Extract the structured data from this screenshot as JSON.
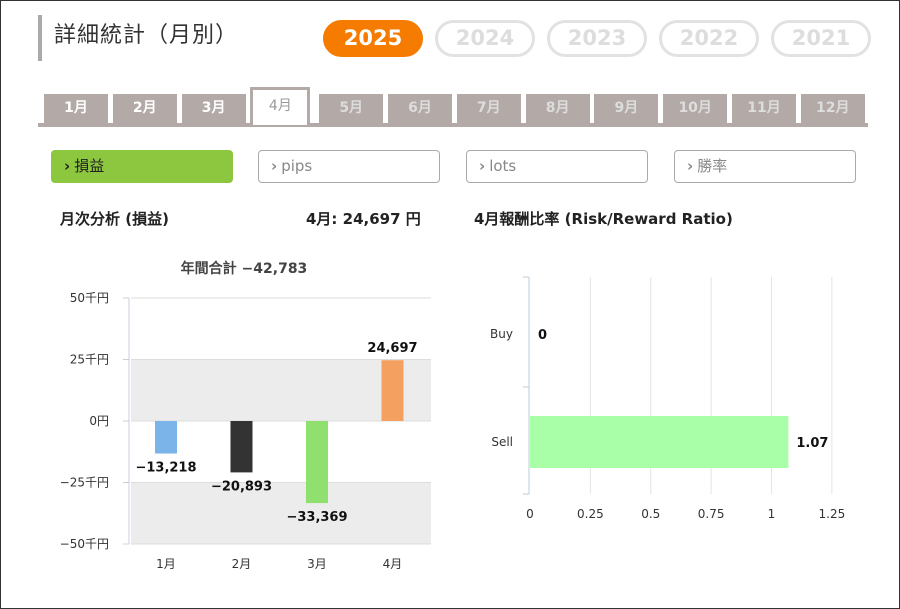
{
  "header": {
    "title": "詳細統計（月別）"
  },
  "years": [
    {
      "label": "2025",
      "active": true
    },
    {
      "label": "2024",
      "active": false
    },
    {
      "label": "2023",
      "active": false
    },
    {
      "label": "2022",
      "active": false
    },
    {
      "label": "2021",
      "active": false
    }
  ],
  "months": [
    {
      "label": "1月",
      "state": "past"
    },
    {
      "label": "2月",
      "state": "past"
    },
    {
      "label": "3月",
      "state": "past"
    },
    {
      "label": "4月",
      "state": "active"
    },
    {
      "label": "5月",
      "state": "future"
    },
    {
      "label": "6月",
      "state": "future"
    },
    {
      "label": "7月",
      "state": "future"
    },
    {
      "label": "8月",
      "state": "future"
    },
    {
      "label": "9月",
      "state": "future"
    },
    {
      "label": "10月",
      "state": "future"
    },
    {
      "label": "11月",
      "state": "future"
    },
    {
      "label": "12月",
      "state": "future"
    }
  ],
  "metrics": [
    {
      "label": "損益",
      "active": true
    },
    {
      "label": "pips",
      "active": false
    },
    {
      "label": "lots",
      "active": false
    },
    {
      "label": "勝率",
      "active": false
    }
  ],
  "monthly": {
    "title": "月次分析 (損益)",
    "month_value": "4月:  24,697 円"
  },
  "ratio": {
    "title": "4月報酬比率 (Risk/Reward Ratio)"
  },
  "colors": {
    "accent_orange": "#f57c00",
    "active_green": "#8dc63f"
  },
  "chart_data": [
    {
      "type": "bar",
      "title": "年間合計 −42,783",
      "categories": [
        "1月",
        "2月",
        "3月",
        "4月"
      ],
      "values": [
        -13218,
        -20893,
        -33369,
        24697
      ],
      "value_labels": [
        "−13,218",
        "−20,893",
        "−33,369",
        "24,697"
      ],
      "colors": [
        "#7ab4e8",
        "#333333",
        "#90e070",
        "#f4a060"
      ],
      "ylim": [
        -50000,
        50000
      ],
      "yticks": [
        50000,
        25000,
        0,
        -25000,
        -50000
      ],
      "ytick_labels": [
        "50千円",
        "25千円",
        "0円",
        "−25千円",
        "−50千円"
      ],
      "grid": "horizontal bands"
    },
    {
      "type": "bar",
      "orientation": "horizontal",
      "categories": [
        "Buy",
        "Sell"
      ],
      "values": [
        0,
        1.07
      ],
      "value_labels": [
        "0",
        "1.07"
      ],
      "colors": [
        "#a8ffa8",
        "#a8ffa8"
      ],
      "xlim": [
        0,
        1.25
      ],
      "xticks": [
        0,
        0.25,
        0.5,
        0.75,
        1,
        1.25
      ],
      "xtick_labels": [
        "0",
        "0.25",
        "0.5",
        "0.75",
        "1",
        "1.25"
      ],
      "grid": "vertical"
    }
  ]
}
